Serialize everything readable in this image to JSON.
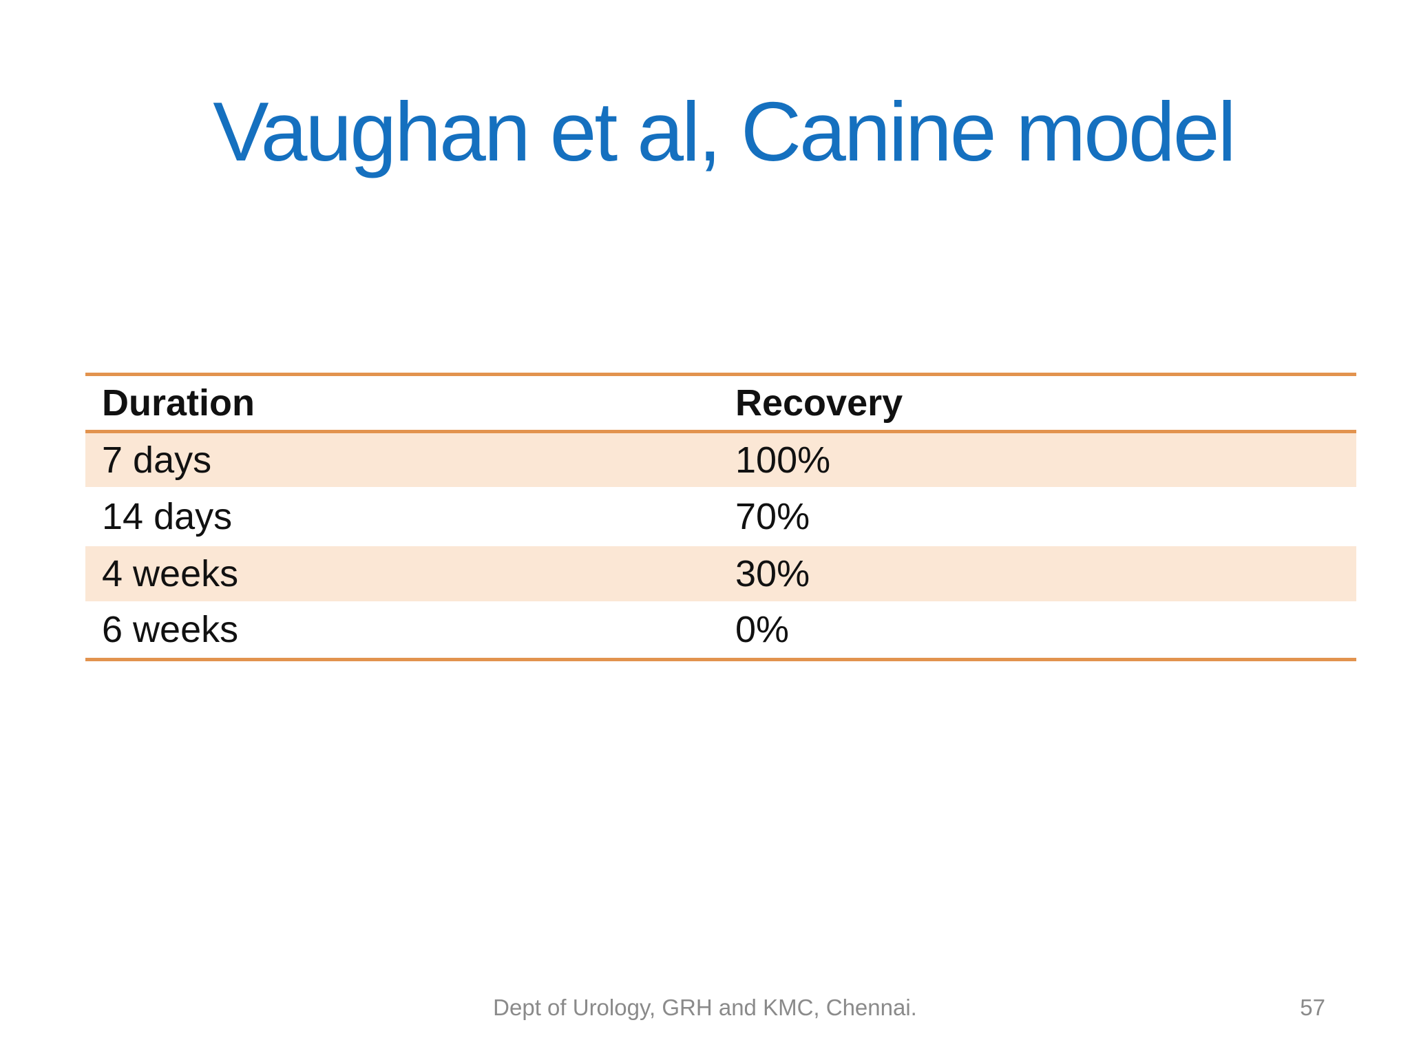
{
  "slide": {
    "title": "Vaughan et al, Canine model",
    "table": {
      "columns": {
        "duration": "Duration",
        "recovery": "Recovery"
      },
      "rows": [
        {
          "duration": "7 days",
          "recovery": "100%"
        },
        {
          "duration": "14 days",
          "recovery": "70%"
        },
        {
          "duration": "4 weeks",
          "recovery": "30%"
        },
        {
          "duration": "6 weeks",
          "recovery": "0%"
        }
      ]
    },
    "footer": {
      "text": "Dept of Urology, GRH and KMC, Chennai.",
      "page_number": "57"
    },
    "colors": {
      "title_blue": "#1570BF",
      "table_border_orange": "#E2934E",
      "band_fill_peach": "#FBE7D5",
      "body_text": "#111111",
      "footer_gray": "#8A8A8A"
    }
  },
  "chart_data": {
    "type": "table",
    "title": "Vaughan et al, Canine model",
    "columns": [
      "Duration",
      "Recovery"
    ],
    "rows": [
      [
        "7 days",
        "100%"
      ],
      [
        "14 days",
        "70%"
      ],
      [
        "4 weeks",
        "30%"
      ],
      [
        "6 weeks",
        "0%"
      ]
    ],
    "recovery_percent": {
      "7 days": 100,
      "14 days": 70,
      "4 weeks": 30,
      "6 weeks": 0
    }
  }
}
